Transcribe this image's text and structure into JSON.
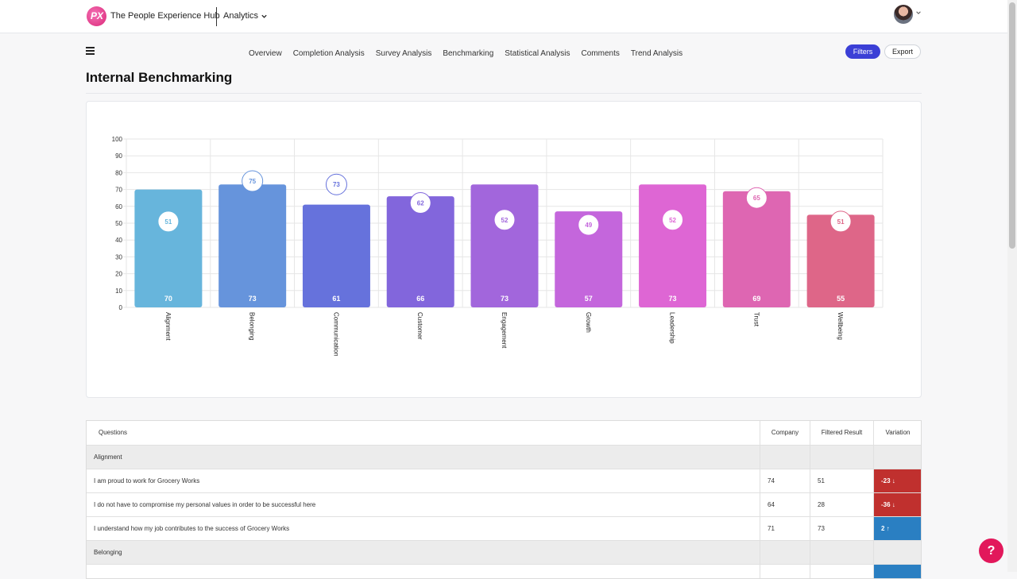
{
  "app": {
    "brand": "The People Experience Hub",
    "logo_text": "PX",
    "module": "Analytics"
  },
  "nav": {
    "items": [
      "Overview",
      "Completion Analysis",
      "Survey Analysis",
      "Benchmarking",
      "Statistical Analysis",
      "Comments",
      "Trend Analysis"
    ]
  },
  "actions": {
    "filters_label": "Filters",
    "export_label": "Export"
  },
  "page": {
    "title": "Internal Benchmarking"
  },
  "chart_data": {
    "type": "bar",
    "categories": [
      "Alignment",
      "Belonging",
      "Communication",
      "Customer",
      "Engagement",
      "Growth",
      "Leadership",
      "Trust",
      "Wellbeing"
    ],
    "series": [
      {
        "values": [
          70,
          73,
          61,
          66,
          73,
          57,
          73,
          69,
          55
        ]
      },
      {
        "values": [
          51,
          75,
          73,
          62,
          52,
          49,
          52,
          65,
          51
        ]
      }
    ],
    "ylim": [
      0,
      100
    ],
    "yticks": [
      0,
      10,
      20,
      30,
      40,
      50,
      60,
      70,
      80,
      90,
      100
    ],
    "grid": true,
    "colors": [
      "#67b5dc",
      "#6694dc",
      "#6672dc",
      "#8266dc",
      "#a266dc",
      "#c466dc",
      "#de66d4",
      "#de66b2",
      "#de6688"
    ]
  },
  "table": {
    "headers": {
      "question": "Questions",
      "company": "Company",
      "filtered": "Filtered Result",
      "variation": "Variation"
    },
    "groups": [
      {
        "name": "Alignment",
        "rows": [
          {
            "question": "I am proud to work for Grocery Works",
            "company": "74",
            "filtered": "51",
            "variation": "-23 ↓",
            "trend": "neg"
          },
          {
            "question": "I do not have to compromise my personal values in order to be successful here",
            "company": "64",
            "filtered": "28",
            "variation": "-36 ↓",
            "trend": "neg"
          },
          {
            "question": "I understand how my job contributes to the success of Grocery Works",
            "company": "71",
            "filtered": "73",
            "variation": "2 ↑",
            "trend": "pos"
          }
        ]
      },
      {
        "name": "Belonging",
        "rows": []
      }
    ]
  },
  "help": {
    "label": "?"
  }
}
